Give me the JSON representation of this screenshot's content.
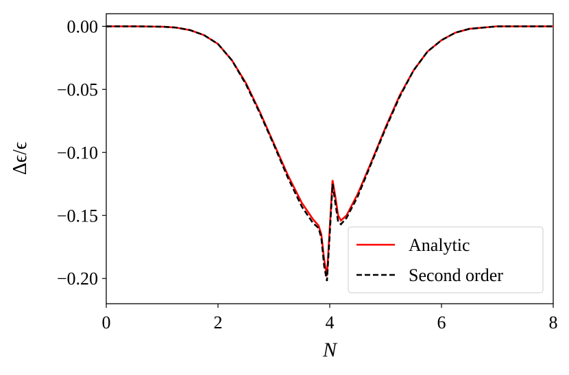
{
  "chart_data": {
    "type": "line",
    "x_label": "N",
    "y_label": "Δϵ/ϵ",
    "x": [
      0,
      0.5,
      1,
      1.25,
      1.5,
      1.75,
      2,
      2.25,
      2.5,
      2.75,
      3,
      3.25,
      3.5,
      3.7,
      3.8,
      3.85,
      3.9,
      3.95,
      4.0,
      4.05,
      4.1,
      4.15,
      4.2,
      4.3,
      4.5,
      4.75,
      5,
      5.25,
      5.5,
      5.75,
      6,
      6.25,
      6.5,
      7,
      7.5,
      8
    ],
    "series": [
      {
        "name": "Analytic",
        "color": "#ff0000",
        "dash": false,
        "values": [
          0,
          0,
          -0.0003,
          -0.001,
          -0.003,
          -0.007,
          -0.014,
          -0.027,
          -0.045,
          -0.068,
          -0.093,
          -0.118,
          -0.14,
          -0.153,
          -0.158,
          -0.165,
          -0.185,
          -0.198,
          -0.16,
          -0.122,
          -0.135,
          -0.15,
          -0.154,
          -0.15,
          -0.133,
          -0.107,
          -0.08,
          -0.055,
          -0.035,
          -0.02,
          -0.011,
          -0.005,
          -0.002,
          0,
          0,
          0
        ]
      },
      {
        "name": "Second order",
        "color": "#000000",
        "dash": true,
        "values": [
          0,
          0,
          -0.0003,
          -0.001,
          -0.003,
          -0.007,
          -0.014,
          -0.027,
          -0.046,
          -0.069,
          -0.094,
          -0.12,
          -0.143,
          -0.156,
          -0.16,
          -0.168,
          -0.19,
          -0.202,
          -0.165,
          -0.125,
          -0.14,
          -0.155,
          -0.157,
          -0.152,
          -0.135,
          -0.108,
          -0.081,
          -0.056,
          -0.035,
          -0.02,
          -0.011,
          -0.005,
          -0.002,
          0,
          0,
          0
        ]
      }
    ],
    "xlim": [
      0,
      8
    ],
    "ylim": [
      -0.22,
      0.01
    ],
    "xticks": [
      0,
      2,
      4,
      6,
      8
    ],
    "yticks": [
      {
        "value": 0,
        "label": "0.00"
      },
      {
        "value": -0.05,
        "label": "−0.05"
      },
      {
        "value": -0.1,
        "label": "−0.10"
      },
      {
        "value": -0.15,
        "label": "−0.15"
      },
      {
        "value": -0.2,
        "label": "−0.20"
      }
    ],
    "legend": "lower right",
    "grid": false
  }
}
